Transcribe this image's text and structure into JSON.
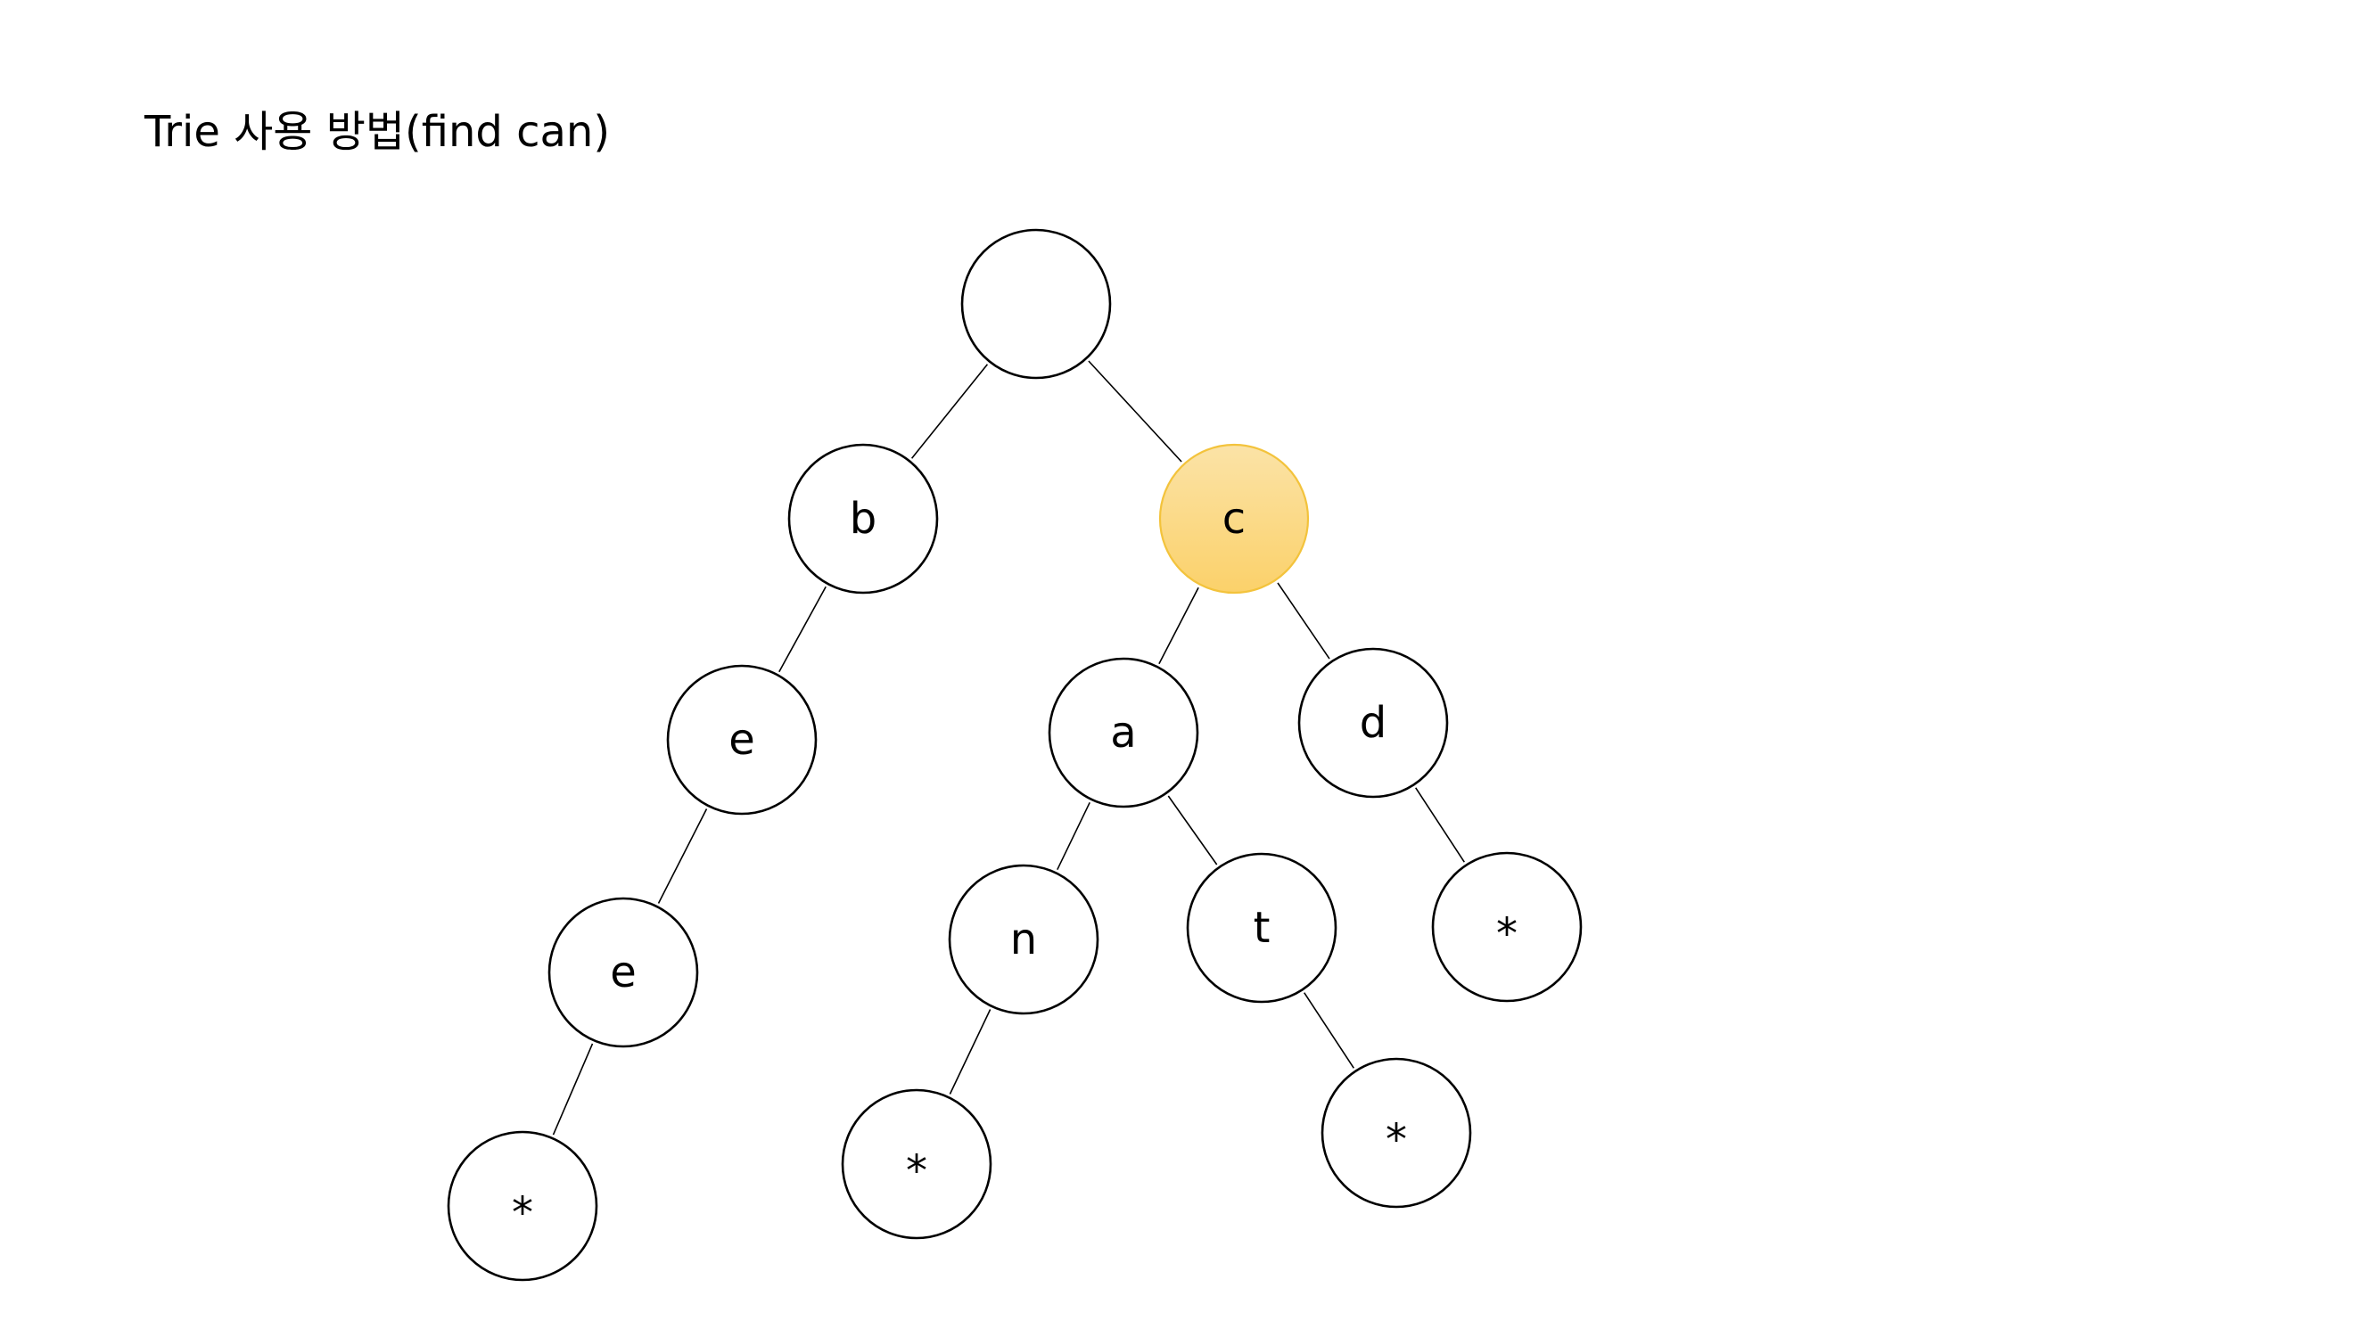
{
  "title": "Trie 사용 방법(find can)",
  "colors": {
    "highlight_fill_top": "#fbe3a7",
    "highlight_fill_bottom": "#fbd16a",
    "highlight_stroke": "#f3c33c",
    "node_stroke": "#000000",
    "node_fill": "#ffffff"
  },
  "nodes": [
    {
      "id": "root",
      "label": "",
      "highlight": false
    },
    {
      "id": "b",
      "label": "b",
      "highlight": false
    },
    {
      "id": "c",
      "label": "c",
      "highlight": true
    },
    {
      "id": "be",
      "label": "e",
      "highlight": false
    },
    {
      "id": "bee",
      "label": "e",
      "highlight": false
    },
    {
      "id": "bee_end",
      "label": "*",
      "highlight": false
    },
    {
      "id": "ca",
      "label": "a",
      "highlight": false
    },
    {
      "id": "cd",
      "label": "d",
      "highlight": false
    },
    {
      "id": "can",
      "label": "n",
      "highlight": false
    },
    {
      "id": "cat",
      "label": "t",
      "highlight": false
    },
    {
      "id": "cd_end",
      "label": "*",
      "highlight": false
    },
    {
      "id": "can_end",
      "label": "*",
      "highlight": false
    },
    {
      "id": "cat_end",
      "label": "*",
      "highlight": false
    }
  ],
  "edges": [
    [
      "root",
      "b"
    ],
    [
      "root",
      "c"
    ],
    [
      "b",
      "be"
    ],
    [
      "be",
      "bee"
    ],
    [
      "bee",
      "bee_end"
    ],
    [
      "c",
      "ca"
    ],
    [
      "c",
      "cd"
    ],
    [
      "ca",
      "can"
    ],
    [
      "ca",
      "cat"
    ],
    [
      "cd",
      "cd_end"
    ],
    [
      "can",
      "can_end"
    ],
    [
      "cat",
      "cat_end"
    ]
  ]
}
